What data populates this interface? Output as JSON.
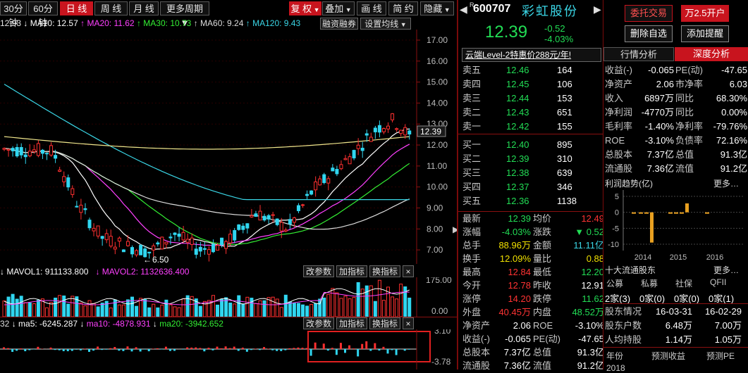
{
  "toolbar": {
    "period_buttons": [
      "30分钟",
      "60分钟",
      "日 线",
      "周 线",
      "月 线",
      "更多周期"
    ],
    "active_period": "日 线",
    "right_buttons": [
      "复 权",
      "叠加",
      "画 线",
      "简 约",
      "隐藏"
    ]
  },
  "ma_legend": {
    "price": "12.93",
    "items": [
      {
        "label": "MA10: 12.57",
        "color": "#ffffff"
      },
      {
        "label": "MA20: 11.62",
        "color": "#ff40ff"
      },
      {
        "label": "MA30: 10.73",
        "color": "#33ee33"
      },
      {
        "label": "MA60: 9.24",
        "color": "#dddddd"
      },
      {
        "label": "MA120: 9.43",
        "color": "#3ad6e6"
      }
    ],
    "rzrq_button": "融资融券",
    "settings_button": "设置均线"
  },
  "price_axis": [
    "17.00",
    "16.00",
    "15.00",
    "14.00",
    "13.00",
    "12.00",
    "11.00",
    "10.00",
    "9.00",
    "8.00",
    "7.00"
  ],
  "current_price_tag": "12.39",
  "min_price_label": "6.50",
  "volume_panel": {
    "mavol1": "MAVOL1: 911133.800",
    "mavol2": "MAVOL2: 1132636.400",
    "buttons": [
      "改参数",
      "加指标",
      "换指标",
      "×"
    ],
    "axis_top": "175.00",
    "axis_bottom": "0.00"
  },
  "macd_panel": {
    "first": "32",
    "ma5": "ma5: -6245.287",
    "ma10": "ma10: -4878.931",
    "ma20": "ma20: -3942.652",
    "buttons": [
      "改参数",
      "加指标",
      "换指标",
      "×"
    ],
    "axis_top": "3.10",
    "axis_bottom": "-3.78"
  },
  "stock": {
    "code": "600707",
    "code_sup": "R",
    "name": "彩虹股份",
    "price": "12.39",
    "change": "-0.52",
    "change_pct": "-4.03%",
    "buttons": [
      "委托交易",
      "万2.5开户",
      "删除自选",
      "添加提醒"
    ]
  },
  "promo": "云端Level-2特惠价288元/年!",
  "order_book": {
    "asks": [
      {
        "label": "卖五",
        "price": "12.46",
        "vol": "164"
      },
      {
        "label": "卖四",
        "price": "12.45",
        "vol": "106"
      },
      {
        "label": "卖三",
        "price": "12.44",
        "vol": "153"
      },
      {
        "label": "卖二",
        "price": "12.43",
        "vol": "651"
      },
      {
        "label": "卖一",
        "price": "12.42",
        "vol": "155"
      }
    ],
    "bids": [
      {
        "label": "买一",
        "price": "12.40",
        "vol": "895"
      },
      {
        "label": "买二",
        "price": "12.39",
        "vol": "310"
      },
      {
        "label": "买三",
        "price": "12.38",
        "vol": "639"
      },
      {
        "label": "买四",
        "price": "12.37",
        "vol": "346"
      },
      {
        "label": "买五",
        "price": "12.36",
        "vol": "1138"
      }
    ]
  },
  "stats": [
    {
      "l1": "最新",
      "v1": "12.39",
      "c1": "green",
      "l2": "均价",
      "v2": "12.49",
      "c2": "red"
    },
    {
      "l1": "涨幅",
      "v1": "-4.03%",
      "c1": "green",
      "l2": "涨跌",
      "v2": "▼ 0.52",
      "c2": "green"
    },
    {
      "l1": "总手",
      "v1": "88.96万",
      "c1": "yellow",
      "l2": "金额",
      "v2": "11.11亿",
      "c2": "cyan"
    },
    {
      "l1": "换手",
      "v1": "12.09%",
      "c1": "yellow",
      "l2": "量比",
      "v2": "0.88",
      "c2": "yellow"
    },
    {
      "l1": "最高",
      "v1": "12.84",
      "c1": "red",
      "l2": "最低",
      "v2": "12.20",
      "c2": "green"
    },
    {
      "l1": "今开",
      "v1": "12.78",
      "c1": "red",
      "l2": "昨收",
      "v2": "12.91",
      "c2": "white"
    },
    {
      "l1": "涨停",
      "v1": "14.20",
      "c1": "red",
      "l2": "跌停",
      "v2": "11.62",
      "c2": "green"
    },
    {
      "l1": "外盘",
      "v1": "40.45万",
      "c1": "red",
      "l2": "内盘",
      "v2": "48.52万",
      "c2": "green"
    },
    {
      "l1": "净资产",
      "v1": "2.06",
      "c1": "white",
      "l2": "ROE",
      "v2": "-3.10%",
      "c2": "white"
    },
    {
      "l1": "收益(-)",
      "v1": "-0.065",
      "c1": "white",
      "l2": "PE(动)",
      "v2": "-47.65",
      "c2": "white"
    },
    {
      "l1": "总股本",
      "v1": "7.37亿",
      "c1": "white",
      "l2": "总值",
      "v2": "91.3亿",
      "c2": "white"
    },
    {
      "l1": "流通股",
      "v1": "7.36亿",
      "c1": "white",
      "l2": "流值",
      "v2": "91.2亿",
      "c2": "white"
    }
  ],
  "right_tabs": [
    "行情分析",
    "深度分析"
  ],
  "active_right_tab": "深度分析",
  "fundamentals": [
    {
      "l1": "收益(-)",
      "v1": "-0.065",
      "l2": "PE(动)",
      "v2": "-47.65"
    },
    {
      "l1": "净资产",
      "v1": "2.06",
      "l2": "市净率",
      "v2": "6.03"
    },
    {
      "l1": "收入",
      "v1": "6897万",
      "l2": "同比",
      "v2": "68.30%"
    },
    {
      "l1": "净利润",
      "v1": "-4770万",
      "l2": "同比",
      "v2": "0.00%"
    },
    {
      "l1": "毛利率",
      "v1": "-1.40%",
      "l2": "净利率",
      "v2": "-79.76%"
    },
    {
      "l1": "ROE",
      "v1": "-3.10%",
      "l2": "负债率",
      "v2": "72.16%"
    },
    {
      "l1": "总股本",
      "v1": "7.37亿",
      "l2": "总值",
      "v2": "91.3亿"
    },
    {
      "l1": "流通股",
      "v1": "7.36亿",
      "l2": "流值",
      "v2": "91.2亿"
    }
  ],
  "profit_trend": {
    "title": "利润趋势(亿)",
    "more": "更多",
    "y_ticks": [
      "5",
      "0",
      "-5",
      "-10"
    ],
    "x_ticks": [
      "2014",
      "2015",
      "2016"
    ]
  },
  "top10": {
    "title": "十大流通股东",
    "more": "更多",
    "headers": [
      "公募",
      "私募",
      "社保",
      "QFII"
    ],
    "values": [
      "2家(3)",
      "0家(0)",
      "0家(0)",
      "0家(1)"
    ]
  },
  "holders": [
    {
      "label": "股东情况",
      "v1": "16-03-31",
      "v2": "16-02-29"
    },
    {
      "label": "股东户数",
      "v1": "6.48万",
      "v2": "7.00万"
    },
    {
      "label": "人均持股",
      "v1": "1.14万",
      "v2": "1.05万"
    }
  ],
  "bottom_row": {
    "c1": "年份",
    "c2": "预测收益",
    "c3": "预测PE",
    "year": "2018"
  },
  "chart_data": {
    "type": "candlestick",
    "price_axis": {
      "min": 6.5,
      "max": 17.0,
      "ticks": [
        17,
        16,
        15,
        14,
        13,
        12,
        11,
        10,
        9,
        8,
        7
      ]
    },
    "last_price": 12.39,
    "low_marker": 6.5,
    "moving_averages": [
      {
        "name": "MA10",
        "value": 12.57
      },
      {
        "name": "MA20",
        "value": 11.62
      },
      {
        "name": "MA30",
        "value": 10.73
      },
      {
        "name": "MA60",
        "value": 9.24
      },
      {
        "name": "MA120",
        "value": 9.43
      }
    ],
    "volume_axis": {
      "min": 0,
      "max": 175
    },
    "macd_axis": {
      "min": -3.78,
      "max": 3.1
    },
    "profit_trend_bars": [
      {
        "x": "2014",
        "value": -9.5
      },
      {
        "x": "2015",
        "value": 2.8
      },
      {
        "x": "2016",
        "value": -0.3
      }
    ]
  }
}
